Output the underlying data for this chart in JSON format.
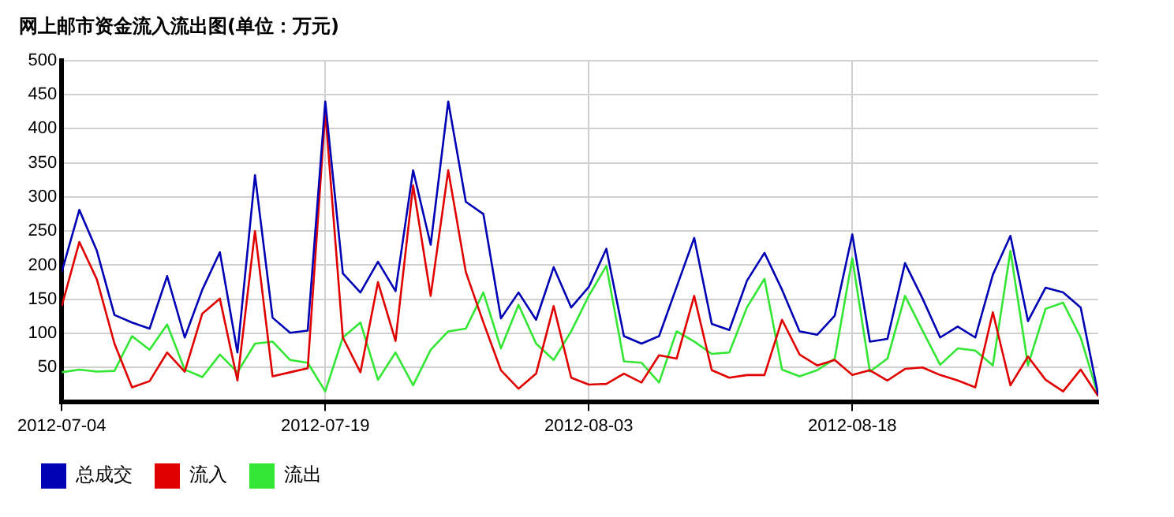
{
  "chart_data": {
    "type": "line",
    "title": "网上邮市资金流入流出图(单位：万元)",
    "x": [
      "2012-07-04",
      "2012-07-05",
      "2012-07-06",
      "2012-07-07",
      "2012-07-08",
      "2012-07-09",
      "2012-07-10",
      "2012-07-11",
      "2012-07-12",
      "2012-07-13",
      "2012-07-14",
      "2012-07-15",
      "2012-07-16",
      "2012-07-17",
      "2012-07-18",
      "2012-07-19",
      "2012-07-20",
      "2012-07-21",
      "2012-07-22",
      "2012-07-23",
      "2012-07-24",
      "2012-07-25",
      "2012-07-26",
      "2012-07-27",
      "2012-07-28",
      "2012-07-29",
      "2012-07-30",
      "2012-07-31",
      "2012-08-01",
      "2012-08-02",
      "2012-08-03",
      "2012-08-04",
      "2012-08-05",
      "2012-08-06",
      "2012-08-07",
      "2012-08-08",
      "2012-08-09",
      "2012-08-10",
      "2012-08-11",
      "2012-08-12",
      "2012-08-13",
      "2012-08-14",
      "2012-08-15",
      "2012-08-16",
      "2012-08-17",
      "2012-08-18",
      "2012-08-19",
      "2012-08-20",
      "2012-08-21",
      "2012-08-22",
      "2012-08-23",
      "2012-08-24",
      "2012-08-25",
      "2012-08-26",
      "2012-08-27",
      "2012-08-28",
      "2012-08-29",
      "2012-08-30",
      "2012-08-31",
      "2012-09-01"
    ],
    "series": [
      {
        "name": "总成交",
        "color": "#0000b4",
        "values": [
          190,
          281,
          221,
          127,
          116,
          107,
          184,
          94,
          164,
          219,
          72,
          332,
          123,
          101,
          104,
          440,
          188,
          160,
          205,
          162,
          339,
          230,
          440,
          293,
          275,
          122,
          160,
          120,
          197,
          138,
          168,
          224,
          96,
          85,
          96,
          168,
          240,
          114,
          105,
          177,
          218,
          164,
          103,
          98,
          126,
          245,
          88,
          92,
          203,
          151,
          94,
          110,
          94,
          186,
          243,
          118,
          167,
          160,
          138,
          10
        ]
      },
      {
        "name": "流入",
        "color": "#e00000",
        "values": [
          140,
          234,
          179,
          85,
          21,
          30,
          72,
          44,
          129,
          151,
          31,
          250,
          37,
          43,
          49,
          425,
          94,
          43,
          175,
          89,
          317,
          155,
          339,
          190,
          116,
          46,
          19,
          41,
          140,
          35,
          25,
          26,
          41,
          28,
          68,
          63,
          155,
          46,
          35,
          39,
          39,
          120,
          69,
          53,
          61,
          39,
          46,
          31,
          48,
          50,
          39,
          31,
          21,
          131,
          24,
          66,
          32,
          15,
          47,
          8
        ]
      },
      {
        "name": "流出",
        "color": "#33e633",
        "values": [
          43,
          47,
          44,
          45,
          96,
          76,
          113,
          47,
          36,
          69,
          43,
          85,
          88,
          61,
          57,
          15,
          94,
          116,
          32,
          72,
          24,
          76,
          103,
          107,
          160,
          78,
          142,
          85,
          61,
          103,
          155,
          199,
          59,
          57,
          28,
          103,
          88,
          70,
          72,
          138,
          180,
          47,
          37,
          46,
          63,
          210,
          44,
          63,
          155,
          104,
          54,
          78,
          75,
          53,
          221,
          53,
          136,
          145,
          94,
          8
        ]
      }
    ],
    "xlim": [
      "2012-07-04",
      "2012-09-01"
    ],
    "xticks": [
      "2012-07-04",
      "2012-07-19",
      "2012-08-03",
      "2012-08-18"
    ],
    "ylim": [
      0,
      500
    ],
    "yticks": [
      50,
      100,
      150,
      200,
      250,
      300,
      350,
      400,
      450,
      500
    ],
    "grid": true,
    "legend": "bottom",
    "marker": "none",
    "line_style": "solid"
  }
}
